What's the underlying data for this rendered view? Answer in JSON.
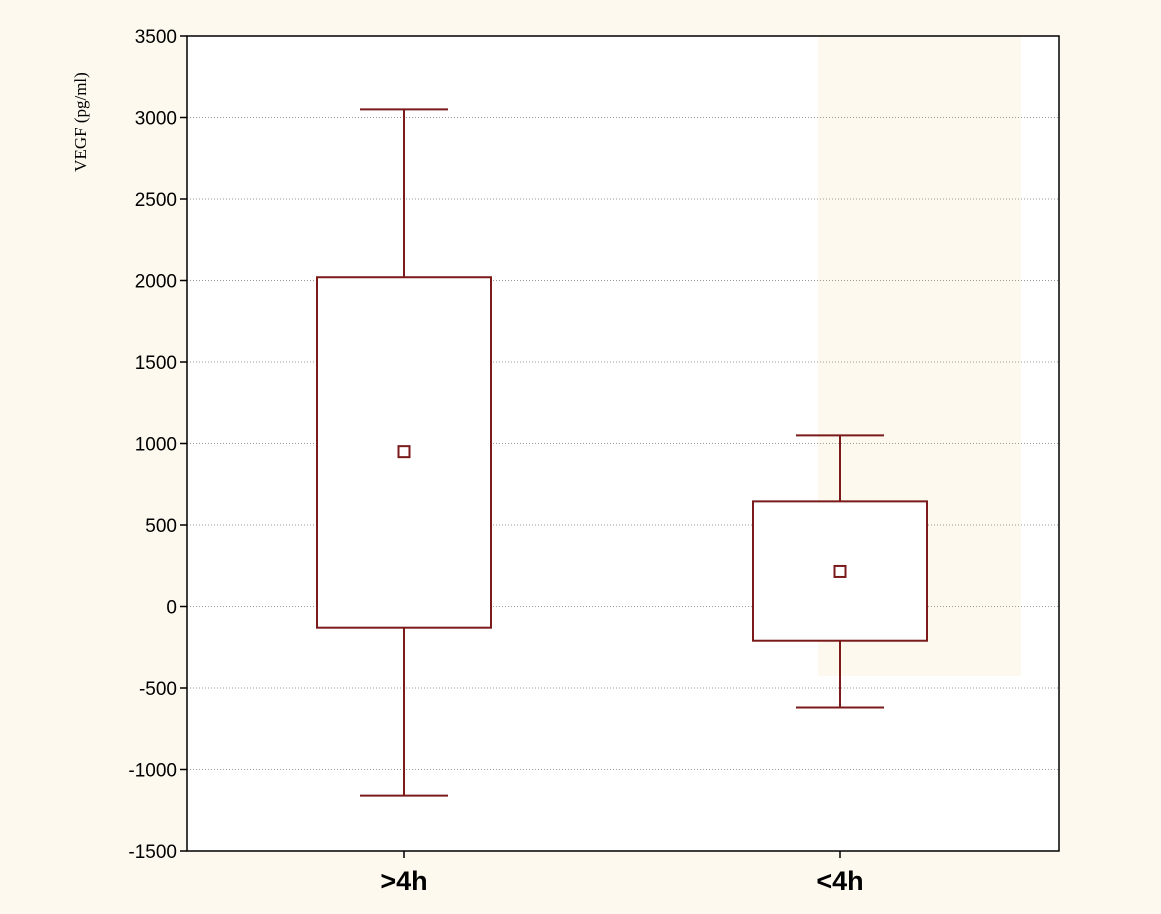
{
  "chart_data": {
    "type": "box",
    "categories": [
      ">4h",
      "<4h"
    ],
    "boxes": [
      {
        "category": ">4h",
        "whisker_low": -1160,
        "box_low": -130,
        "center": 950,
        "box_high": 2020,
        "whisker_high": 3050
      },
      {
        "category": "<4h",
        "whisker_low": -620,
        "box_low": -210,
        "center": 215,
        "box_high": 645,
        "whisker_high": 1050
      }
    ],
    "title": "",
    "xlabel": "",
    "ylabel": "VEGF (pg/ml)",
    "ylim": [
      -1500,
      3500
    ],
    "yticks": [
      -1500,
      -1000,
      -500,
      0,
      500,
      1000,
      1500,
      2000,
      2500,
      3000,
      3500
    ],
    "ytick_labels": [
      "-1500",
      "-1000",
      "-500",
      "0",
      "500",
      "1000",
      "1500",
      "2000",
      "2500",
      "3000",
      "3500"
    ],
    "grid": true,
    "legend": "none",
    "colors": {
      "box": "#7b1a1a",
      "background": "#fdf9ee",
      "plot_area": "#ffffff",
      "grid": "#9a9a9a",
      "axis": "#000000"
    }
  }
}
